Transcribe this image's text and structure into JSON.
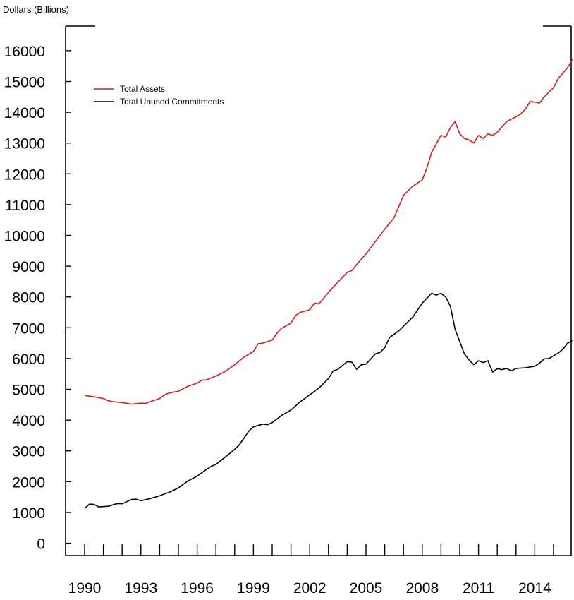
{
  "chart_data": {
    "type": "line",
    "unit_label": "Dollars (Billions)",
    "ylim": [
      -400,
      16800
    ],
    "yticks": [
      0,
      1000,
      2000,
      3000,
      4000,
      5000,
      6000,
      7000,
      8000,
      9000,
      10000,
      11000,
      12000,
      13000,
      14000,
      15000,
      16000
    ],
    "xlim": [
      1990,
      2015
    ],
    "xticks": [
      1990,
      1993,
      1996,
      1999,
      2002,
      2005,
      2008,
      2011,
      2014
    ],
    "legend_position": "top-left",
    "grid": false,
    "series": [
      {
        "name": "Total Assets",
        "color": "#e0191c",
        "points": [
          [
            1990.0,
            4800
          ],
          [
            1990.5,
            4760
          ],
          [
            1991.0,
            4700
          ],
          [
            1991.25,
            4630
          ],
          [
            1991.5,
            4600
          ],
          [
            1992.0,
            4570
          ],
          [
            1992.5,
            4520
          ],
          [
            1993.0,
            4550
          ],
          [
            1993.25,
            4540
          ],
          [
            1993.5,
            4600
          ],
          [
            1994.0,
            4700
          ],
          [
            1994.25,
            4820
          ],
          [
            1994.5,
            4880
          ],
          [
            1995.0,
            4940
          ],
          [
            1995.25,
            5020
          ],
          [
            1995.5,
            5100
          ],
          [
            1996.0,
            5200
          ],
          [
            1996.25,
            5300
          ],
          [
            1996.5,
            5310
          ],
          [
            1997.0,
            5430
          ],
          [
            1997.5,
            5580
          ],
          [
            1998.0,
            5800
          ],
          [
            1998.5,
            6050
          ],
          [
            1999.0,
            6230
          ],
          [
            1999.25,
            6480
          ],
          [
            1999.5,
            6500
          ],
          [
            2000.0,
            6600
          ],
          [
            2000.25,
            6820
          ],
          [
            2000.5,
            6980
          ],
          [
            2001.0,
            7150
          ],
          [
            2001.25,
            7400
          ],
          [
            2001.5,
            7500
          ],
          [
            2002.0,
            7580
          ],
          [
            2002.25,
            7800
          ],
          [
            2002.5,
            7780
          ],
          [
            2003.0,
            8150
          ],
          [
            2003.5,
            8480
          ],
          [
            2004.0,
            8800
          ],
          [
            2004.25,
            8860
          ],
          [
            2004.5,
            9050
          ],
          [
            2005.0,
            9400
          ],
          [
            2005.5,
            9800
          ],
          [
            2006.0,
            10200
          ],
          [
            2006.5,
            10580
          ],
          [
            2007.0,
            11300
          ],
          [
            2007.5,
            11600
          ],
          [
            2008.0,
            11800
          ],
          [
            2008.25,
            12200
          ],
          [
            2008.5,
            12700
          ],
          [
            2009.0,
            13250
          ],
          [
            2009.25,
            13200
          ],
          [
            2009.5,
            13500
          ],
          [
            2009.75,
            13700
          ],
          [
            2010.0,
            13300
          ],
          [
            2010.25,
            13150
          ],
          [
            2010.5,
            13100
          ],
          [
            2010.75,
            13000
          ],
          [
            2011.0,
            13250
          ],
          [
            2011.25,
            13150
          ],
          [
            2011.5,
            13300
          ],
          [
            2011.75,
            13250
          ],
          [
            2012.0,
            13350
          ],
          [
            2012.5,
            13700
          ],
          [
            2013.0,
            13850
          ],
          [
            2013.25,
            13950
          ],
          [
            2013.5,
            14100
          ],
          [
            2013.75,
            14350
          ],
          [
            2014.0,
            14330
          ],
          [
            2014.25,
            14300
          ],
          [
            2014.5,
            14500
          ],
          [
            2015.0,
            14800
          ],
          [
            2015.25,
            15100
          ],
          [
            2015.75,
            15450
          ],
          [
            2016.0,
            15720
          ]
        ]
      },
      {
        "name": "Total Unused Commitments",
        "color": "#000000",
        "points": [
          [
            1990.0,
            1130
          ],
          [
            1990.25,
            1270
          ],
          [
            1990.5,
            1260
          ],
          [
            1990.75,
            1180
          ],
          [
            1991.25,
            1200
          ],
          [
            1991.75,
            1290
          ],
          [
            1992.0,
            1280
          ],
          [
            1992.25,
            1350
          ],
          [
            1992.5,
            1420
          ],
          [
            1992.75,
            1430
          ],
          [
            1993.0,
            1380
          ],
          [
            1993.5,
            1450
          ],
          [
            1994.0,
            1540
          ],
          [
            1994.25,
            1600
          ],
          [
            1994.5,
            1650
          ],
          [
            1995.0,
            1800
          ],
          [
            1995.5,
            2020
          ],
          [
            1996.0,
            2180
          ],
          [
            1996.5,
            2400
          ],
          [
            1996.75,
            2500
          ],
          [
            1997.0,
            2560
          ],
          [
            1997.5,
            2800
          ],
          [
            1998.0,
            3050
          ],
          [
            1998.25,
            3200
          ],
          [
            1998.5,
            3420
          ],
          [
            1998.75,
            3640
          ],
          [
            1999.0,
            3780
          ],
          [
            1999.5,
            3870
          ],
          [
            1999.75,
            3850
          ],
          [
            2000.0,
            3920
          ],
          [
            2000.5,
            4150
          ],
          [
            2001.0,
            4330
          ],
          [
            2001.5,
            4600
          ],
          [
            2002.0,
            4820
          ],
          [
            2002.5,
            5050
          ],
          [
            2002.75,
            5200
          ],
          [
            2003.0,
            5350
          ],
          [
            2003.25,
            5600
          ],
          [
            2003.5,
            5650
          ],
          [
            2004.0,
            5900
          ],
          [
            2004.25,
            5880
          ],
          [
            2004.5,
            5650
          ],
          [
            2004.75,
            5800
          ],
          [
            2005.0,
            5820
          ],
          [
            2005.5,
            6150
          ],
          [
            2005.75,
            6200
          ],
          [
            2006.0,
            6350
          ],
          [
            2006.25,
            6680
          ],
          [
            2006.75,
            6900
          ],
          [
            2007.25,
            7200
          ],
          [
            2007.5,
            7350
          ],
          [
            2008.0,
            7800
          ],
          [
            2008.5,
            8120
          ],
          [
            2008.75,
            8060
          ],
          [
            2009.0,
            8120
          ],
          [
            2009.25,
            8000
          ],
          [
            2009.5,
            7700
          ],
          [
            2009.75,
            6950
          ],
          [
            2010.25,
            6150
          ],
          [
            2010.5,
            5950
          ],
          [
            2010.75,
            5800
          ],
          [
            2011.0,
            5930
          ],
          [
            2011.25,
            5870
          ],
          [
            2011.5,
            5930
          ],
          [
            2011.75,
            5560
          ],
          [
            2012.0,
            5670
          ],
          [
            2012.25,
            5640
          ],
          [
            2012.5,
            5680
          ],
          [
            2012.75,
            5600
          ],
          [
            2013.0,
            5680
          ],
          [
            2013.5,
            5700
          ],
          [
            2014.0,
            5750
          ],
          [
            2014.25,
            5850
          ],
          [
            2014.5,
            5990
          ],
          [
            2014.75,
            6000
          ],
          [
            2015.25,
            6180
          ],
          [
            2015.5,
            6300
          ],
          [
            2015.75,
            6500
          ],
          [
            2016.0,
            6580
          ]
        ]
      }
    ]
  }
}
